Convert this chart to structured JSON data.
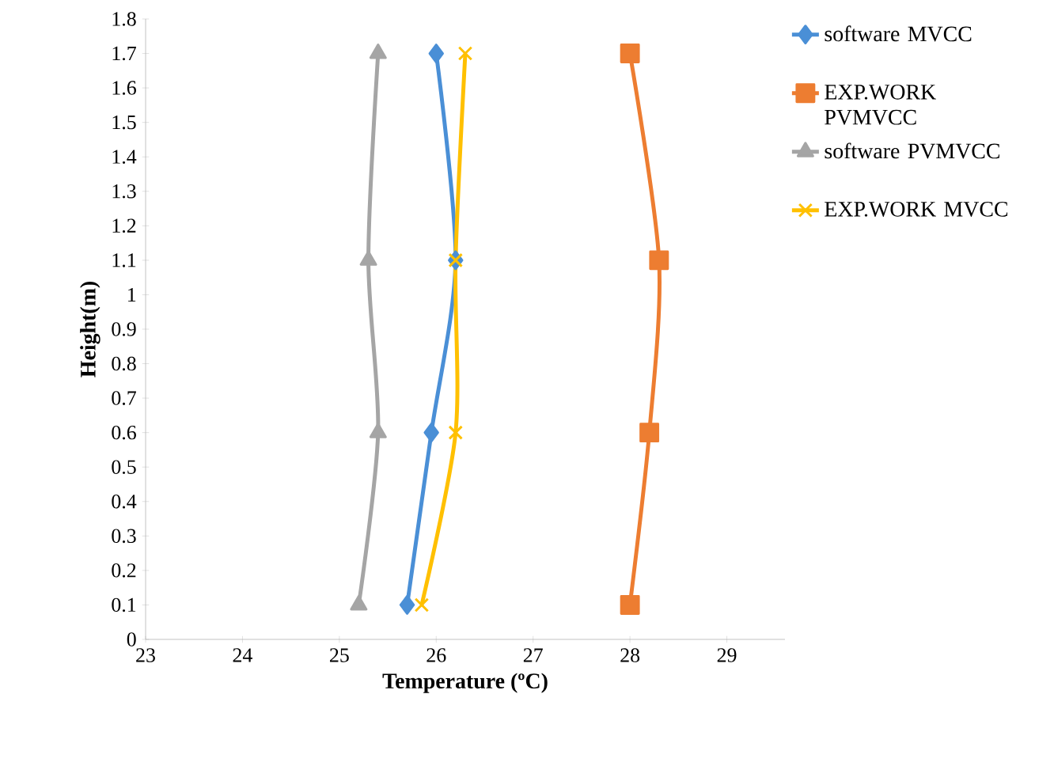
{
  "chart_data": {
    "type": "line",
    "xlabel": "Temperature (ºC)",
    "ylabel": "Height(m)",
    "xlim": [
      23,
      29.6
    ],
    "xticks": [
      23,
      24,
      25,
      26,
      27,
      28,
      29
    ],
    "ylim": [
      0,
      1.8
    ],
    "yticks": [
      0,
      0.1,
      0.2,
      0.3,
      0.4,
      0.5,
      0.6,
      0.7,
      0.8,
      0.9,
      1,
      1.1,
      1.2,
      1.3,
      1.4,
      1.5,
      1.6,
      1.7,
      1.8
    ],
    "grid": false,
    "legend": "right",
    "line_style": "solid",
    "series": [
      {
        "name": "software MVCC",
        "color": "#4a8fd6",
        "marker": "diamond",
        "x": [
          25.7,
          25.95,
          26.2,
          26.0
        ],
        "values": [
          0.1,
          0.6,
          1.1,
          1.7
        ]
      },
      {
        "name": "EXP.WORK PVMVCC",
        "color": "#ed7d31",
        "marker": "square",
        "x": [
          28.0,
          28.2,
          28.3,
          28.0
        ],
        "values": [
          0.1,
          0.6,
          1.1,
          1.7
        ]
      },
      {
        "name": "software PVMVCC",
        "color": "#a5a5a5",
        "marker": "triangle",
        "x": [
          25.2,
          25.4,
          25.3,
          25.4
        ],
        "values": [
          0.1,
          0.6,
          1.1,
          1.7
        ]
      },
      {
        "name": "EXP.WORK MVCC",
        "color": "#ffc000",
        "marker": "cross",
        "x": [
          25.85,
          26.2,
          26.2,
          26.3
        ],
        "values": [
          0.1,
          0.6,
          1.1,
          1.7
        ]
      }
    ]
  }
}
